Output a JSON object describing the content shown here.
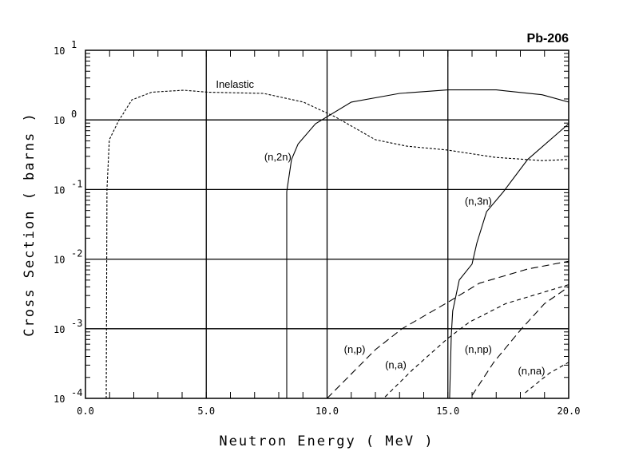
{
  "chart_data": {
    "type": "line",
    "title": "Pb-206",
    "xlabel": "Neutron Energy ( MeV )",
    "ylabel": "Cross Section ( barns )",
    "xlim": [
      0,
      20
    ],
    "ylim": [
      0.0001,
      10
    ],
    "yscale": "log",
    "grid": true,
    "x_ticks": [
      {
        "value": 0,
        "label": "0.0"
      },
      {
        "value": 5,
        "label": "5.0"
      },
      {
        "value": 10,
        "label": "10.0"
      },
      {
        "value": 15,
        "label": "15.0"
      },
      {
        "value": 20,
        "label": "20.0"
      }
    ],
    "y_ticks": [
      {
        "exp": 1,
        "base": "10",
        "sup": "1"
      },
      {
        "exp": 0,
        "base": "10",
        "sup": "0"
      },
      {
        "exp": -1,
        "base": "10",
        "sup": "-1"
      },
      {
        "exp": -2,
        "base": "10",
        "sup": "-2"
      },
      {
        "exp": -3,
        "base": "10",
        "sup": "-3"
      },
      {
        "exp": -4,
        "base": "10",
        "sup": "-4"
      }
    ],
    "series": [
      {
        "name": "Inelastic",
        "style": "short-dash",
        "label_at": [
          5.4,
          2.9
        ],
        "x": [
          0.86,
          0.89,
          0.99,
          1.36,
          1.92,
          2.74,
          4.07,
          5.06,
          7.37,
          9.02,
          10.35,
          12.0,
          13.3,
          14.97,
          16.96,
          18.9,
          20.0
        ],
        "y": [
          0.0001,
          0.1,
          0.52,
          0.95,
          1.94,
          2.5,
          2.67,
          2.5,
          2.4,
          1.8,
          1.1,
          0.52,
          0.42,
          0.37,
          0.29,
          0.26,
          0.27
        ]
      },
      {
        "name": "(n,2n)",
        "style": "solid",
        "label_at": [
          7.4,
          0.26
        ],
        "x": [
          8.33,
          8.33,
          8.53,
          8.8,
          9.52,
          11.0,
          13.0,
          15.0,
          17.0,
          18.9,
          20.0
        ],
        "y": [
          0.0001,
          0.093,
          0.27,
          0.45,
          0.88,
          1.8,
          2.4,
          2.7,
          2.7,
          2.3,
          1.8
        ]
      },
      {
        "name": "(n,3n)",
        "style": "solid",
        "label_at": [
          15.7,
          0.06
        ],
        "x": [
          15.07,
          15.14,
          15.2,
          15.47,
          16.0,
          16.2,
          16.6,
          17.3,
          18.3,
          20.0
        ],
        "y": [
          0.0001,
          0.0008,
          0.0018,
          0.005,
          0.0085,
          0.017,
          0.048,
          0.093,
          0.27,
          0.88
        ]
      },
      {
        "name": "(n,p)",
        "style": "long-dash",
        "label_at": [
          10.7,
          0.00045
        ],
        "x": [
          10.0,
          12.0,
          13.1,
          15.0,
          16.3,
          18.3,
          20.0
        ],
        "y": [
          0.0001,
          0.0005,
          0.001,
          0.0024,
          0.0045,
          0.0072,
          0.0093
        ]
      },
      {
        "name": "(n,a)",
        "style": "medium-dash",
        "label_at": [
          12.4,
          0.00027
        ],
        "x": [
          12.4,
          13.55,
          15.0,
          15.9,
          17.4,
          20.0
        ],
        "y": [
          0.000105,
          0.00026,
          0.00073,
          0.00125,
          0.0023,
          0.0043
        ]
      },
      {
        "name": "(n,np)",
        "style": "long-dash",
        "label_at": [
          15.7,
          0.00045
        ],
        "x": [
          16.0,
          16.9,
          18.05,
          19.0,
          20.0
        ],
        "y": [
          0.00011,
          0.00033,
          0.001,
          0.0023,
          0.004
        ]
      },
      {
        "name": "(n,na)",
        "style": "medium-dash",
        "label_at": [
          17.9,
          0.00022
        ],
        "x": [
          18.2,
          19.2,
          20.0
        ],
        "y": [
          0.00012,
          0.00023,
          0.00033
        ]
      }
    ]
  }
}
